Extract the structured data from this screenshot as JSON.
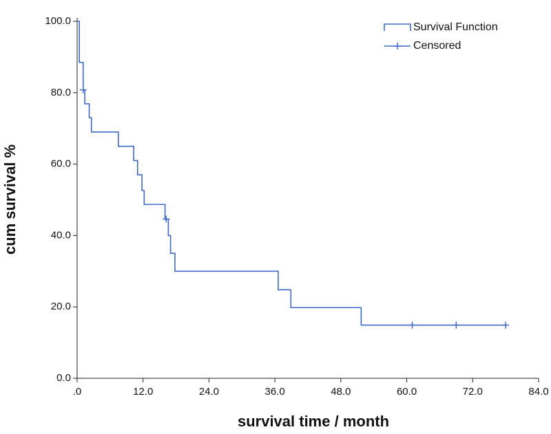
{
  "chart_data": {
    "type": "survival",
    "x_label": "survival time / month",
    "y_label": "cum survival %",
    "xlim": [
      0,
      84
    ],
    "ylim": [
      0,
      100
    ],
    "xticks": [
      {
        "value": 0,
        "label": ".0"
      },
      {
        "value": 12,
        "label": "12.0"
      },
      {
        "value": 24,
        "label": "24.0"
      },
      {
        "value": 36,
        "label": "36.0"
      },
      {
        "value": 48,
        "label": "48.0"
      },
      {
        "value": 60,
        "label": "60.0"
      },
      {
        "value": 72,
        "label": "72.0"
      },
      {
        "value": 84,
        "label": "84.0"
      }
    ],
    "yticks": [
      {
        "value": 0,
        "label": "0.0"
      },
      {
        "value": 20,
        "label": "20.0"
      },
      {
        "value": 40,
        "label": "40.0"
      },
      {
        "value": 60,
        "label": "60.0"
      },
      {
        "value": 80,
        "label": "80.0"
      },
      {
        "value": 100,
        "label": "100.0"
      }
    ],
    "legend_position": "upper right",
    "series": [
      {
        "name": "Survival Function",
        "color": "#3f68c6",
        "x": [
          0,
          0.4,
          1.1,
          1.4,
          2.2,
          2.6,
          7.5,
          10.3,
          11.0,
          11.8,
          12.2,
          16.0,
          16.6,
          17.0,
          17.8,
          36.6,
          38.9,
          51.7,
          78.0
        ],
        "values": [
          100,
          88.5,
          80.8,
          76.9,
          73.0,
          69.0,
          65.0,
          61.0,
          57.0,
          52.6,
          48.7,
          44.6,
          40.0,
          35.0,
          30.0,
          24.8,
          19.8,
          14.9,
          14.9
        ]
      },
      {
        "name": "Censored",
        "color": "#3f68c6",
        "x": [
          1.1,
          16.2,
          61.0,
          69.0,
          78.0
        ],
        "values": [
          80.8,
          44.6,
          14.9,
          14.9,
          14.9
        ]
      }
    ]
  }
}
